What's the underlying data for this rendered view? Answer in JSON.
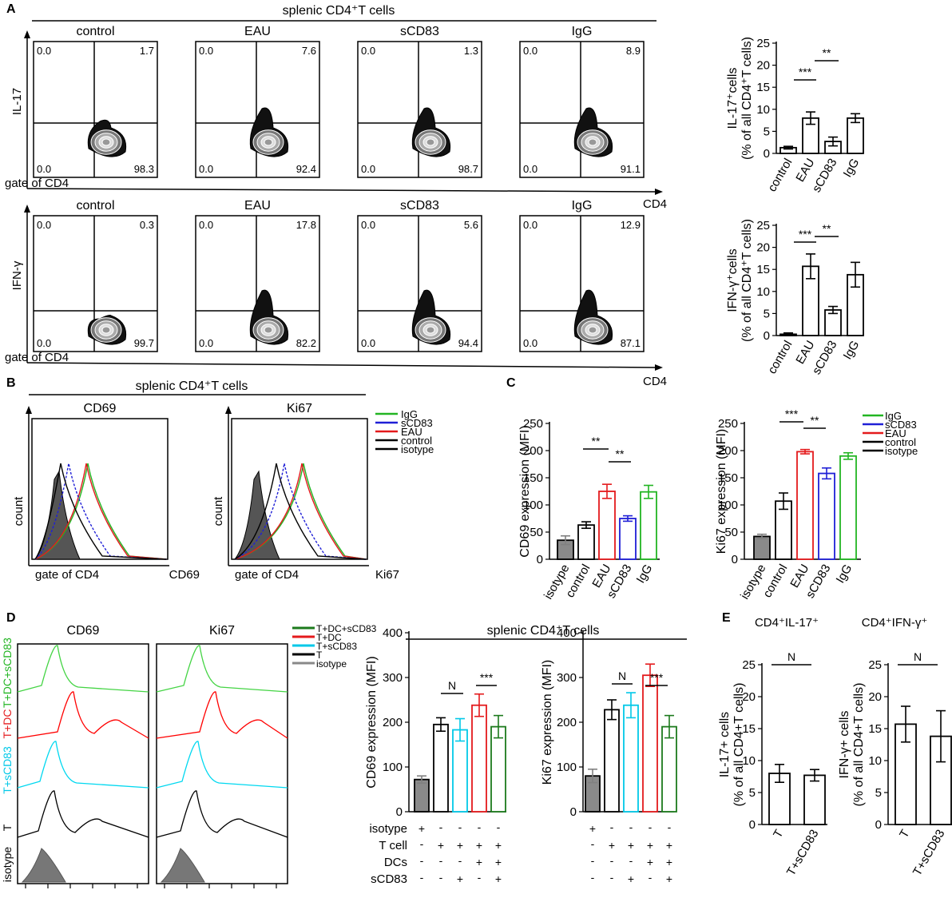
{
  "panels": {
    "A": "A",
    "B": "B",
    "C": "C",
    "D": "D",
    "E": "E"
  },
  "colors": {
    "black": "#000000",
    "red": "#e41a1c",
    "blue": "#1f1fd6",
    "green": "#22b522",
    "cyan": "#00c8e8",
    "darkgreen": "#1c7a1c",
    "gray": "#808080"
  },
  "panelA": {
    "header": "splenic CD4⁺T cells",
    "rows": [
      {
        "ylabel": "IL-17",
        "gate": "gate of CD4",
        "xlabel": "CD4",
        "plots": [
          {
            "title": "control",
            "ul": "0.0",
            "ur": "1.7",
            "ll": "0.0",
            "lr": "98.3"
          },
          {
            "title": "EAU",
            "ul": "0.0",
            "ur": "7.6",
            "ll": "0.0",
            "lr": "92.4"
          },
          {
            "title": "sCD83",
            "ul": "0.0",
            "ur": "1.3",
            "ll": "0.0",
            "lr": "98.7"
          },
          {
            "title": "IgG",
            "ul": "0.0",
            "ur": "8.9",
            "ll": "0.0",
            "lr": "91.1"
          }
        ]
      },
      {
        "ylabel": "IFN-γ",
        "gate": "gate of CD4",
        "xlabel": "CD4",
        "plots": [
          {
            "title": "control",
            "ul": "0.0",
            "ur": "0.3",
            "ll": "0.0",
            "lr": "99.7"
          },
          {
            "title": "EAU",
            "ul": "0.0",
            "ur": "17.8",
            "ll": "0.0",
            "lr": "82.2"
          },
          {
            "title": "sCD83",
            "ul": "0.0",
            "ur": "5.6",
            "ll": "0.0",
            "lr": "94.4"
          },
          {
            "title": "IgG",
            "ul": "0.0",
            "ur": "12.9",
            "ll": "0.0",
            "lr": "87.1"
          }
        ]
      }
    ]
  },
  "panelB": {
    "header": "splenic CD4⁺T cells",
    "plots": [
      {
        "title": "CD69",
        "xlabel": "CD69",
        "ylabel": "count",
        "gate": "gate of CD4"
      },
      {
        "title": "Ki67",
        "xlabel": "Ki67",
        "ylabel": "count",
        "gate": "gate of CD4"
      }
    ],
    "legend": [
      "IgG",
      "sCD83",
      "EAU",
      "control",
      "isotype"
    ]
  },
  "panelD": {
    "header": "splenic CD4⁺T cells",
    "hist_titles": [
      "CD69",
      "Ki67"
    ],
    "row_labels": [
      "T+DC+sCD83",
      "T+DC",
      "T+sCD83",
      "T",
      "isotype"
    ],
    "legend": [
      "T+DC+sCD83",
      "T+DC",
      "T+sCD83",
      "T",
      "isotype"
    ],
    "table_rows": [
      {
        "label": "isotype",
        "marks": [
          "+",
          "-",
          "-",
          "-",
          "-"
        ]
      },
      {
        "label": "T cell",
        "marks": [
          "-",
          "+",
          "+",
          "+",
          "+"
        ]
      },
      {
        "label": "DCs",
        "marks": [
          "-",
          "-",
          "-",
          "+",
          "+"
        ]
      },
      {
        "label": "sCD83",
        "marks": [
          "-",
          "-",
          "+",
          "-",
          "+"
        ]
      }
    ]
  },
  "panelE": {
    "titles": [
      "CD4⁺IL-17⁺",
      "CD4⁺IFN-γ⁺"
    ]
  },
  "chart_data": [
    {
      "type": "bar",
      "id": "A-IL17",
      "categories": [
        "control",
        "EAU",
        "sCD83",
        "IgG"
      ],
      "values": [
        1.3,
        8.0,
        2.7,
        8.0
      ],
      "errors": [
        0.3,
        1.4,
        1.0,
        1.0
      ],
      "ylabel": "IL-17⁺cells (% of all CD4⁺T cells)",
      "ylim": [
        0,
        25
      ],
      "yticks": [
        0,
        5,
        10,
        15,
        20,
        25
      ],
      "significance": [
        {
          "label": "***"
        },
        {
          "label": "**"
        }
      ]
    },
    {
      "type": "bar",
      "id": "A-IFNg",
      "categories": [
        "control",
        "EAU",
        "sCD83",
        "IgG"
      ],
      "values": [
        0.3,
        15.7,
        5.8,
        13.8
      ],
      "errors": [
        0.3,
        2.8,
        0.8,
        2.8
      ],
      "ylabel": "IFN-γ⁺cells (% of all CD4⁺T cells)",
      "ylim": [
        0,
        25
      ],
      "yticks": [
        0,
        5,
        10,
        15,
        20,
        25
      ],
      "significance": [
        {
          "label": "***"
        },
        {
          "label": "**"
        }
      ]
    },
    {
      "type": "bar",
      "id": "C-CD69",
      "categories": [
        "isotype",
        "control",
        "EAU",
        "sCD83",
        "IgG"
      ],
      "values": [
        35,
        63,
        125,
        75,
        124
      ],
      "errors": [
        8,
        6,
        13,
        5,
        12
      ],
      "colors": [
        "gray",
        "black",
        "red",
        "blue",
        "green"
      ],
      "ylabel": "CD69 expression (MFI)",
      "ylim": [
        0,
        250
      ],
      "yticks": [
        0,
        50,
        100,
        150,
        200,
        250
      ],
      "significance": [
        {
          "label": "**"
        },
        {
          "label": "**"
        }
      ]
    },
    {
      "type": "bar",
      "id": "C-Ki67",
      "categories": [
        "isotype",
        "control",
        "EAU",
        "sCD83",
        "IgG"
      ],
      "values": [
        42,
        107,
        198,
        158,
        190
      ],
      "errors": [
        4,
        15,
        4,
        10,
        6
      ],
      "colors": [
        "gray",
        "black",
        "red",
        "blue",
        "green"
      ],
      "ylabel": "Ki67 expression (MFI)",
      "ylim": [
        0,
        250
      ],
      "yticks": [
        0,
        50,
        100,
        150,
        200,
        250
      ],
      "legend": [
        "IgG",
        "sCD83",
        "EAU",
        "control",
        "isotype"
      ],
      "significance": [
        {
          "label": "***"
        },
        {
          "label": "**"
        }
      ]
    },
    {
      "type": "bar",
      "id": "D-CD69",
      "values": [
        72,
        195,
        183,
        238,
        190
      ],
      "errors": [
        8,
        15,
        25,
        25,
        25
      ],
      "colors": [
        "gray",
        "black",
        "cyan",
        "red",
        "darkgreen"
      ],
      "ylabel": "CD69 expression (MFI)",
      "ylim": [
        0,
        400
      ],
      "yticks": [
        0,
        100,
        200,
        300,
        400
      ],
      "significance": [
        {
          "label": "N"
        },
        {
          "label": "***"
        }
      ]
    },
    {
      "type": "bar",
      "id": "D-Ki67",
      "values": [
        80,
        228,
        238,
        305,
        190
      ],
      "errors": [
        15,
        22,
        28,
        25,
        25
      ],
      "colors": [
        "gray",
        "black",
        "cyan",
        "red",
        "darkgreen"
      ],
      "ylabel": "Ki67 expression (MFI)",
      "ylim": [
        0,
        400
      ],
      "yticks": [
        0,
        100,
        200,
        300,
        400
      ],
      "significance": [
        {
          "label": "N"
        },
        {
          "label": "***"
        }
      ]
    },
    {
      "type": "bar",
      "id": "E-IL17",
      "categories": [
        "T",
        "T+sCD83"
      ],
      "values": [
        8.0,
        7.7
      ],
      "errors": [
        1.4,
        0.9
      ],
      "ylabel": "IL-17+ cells (% of all CD4+T cells)",
      "ylim": [
        0,
        25
      ],
      "yticks": [
        0,
        5,
        10,
        15,
        20,
        25
      ],
      "significance": [
        {
          "label": "N"
        }
      ]
    },
    {
      "type": "bar",
      "id": "E-IFNg",
      "categories": [
        "T",
        "T+sCD83"
      ],
      "values": [
        15.7,
        13.8
      ],
      "errors": [
        2.8,
        4.0
      ],
      "ylabel": "IFN-γ+ cells (% of all CD4+T cells)",
      "ylim": [
        0,
        25
      ],
      "yticks": [
        0,
        5,
        10,
        15,
        20,
        25
      ],
      "significance": [
        {
          "label": "N"
        }
      ]
    }
  ]
}
